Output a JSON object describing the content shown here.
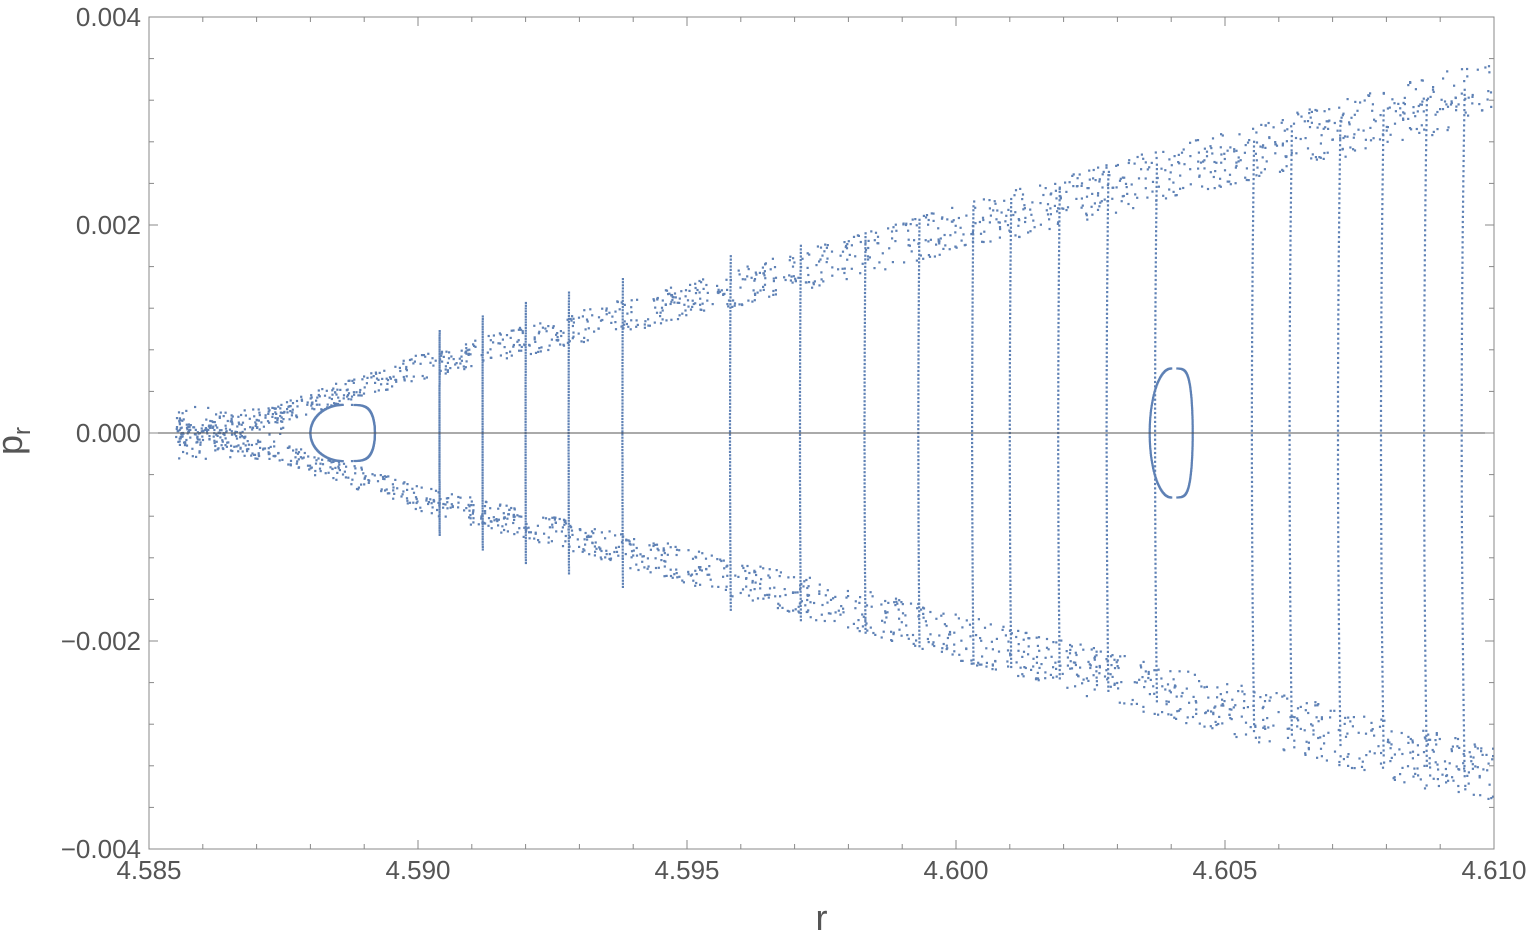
{
  "chart_data": {
    "type": "scatter",
    "title": "",
    "xlabel": "r",
    "ylabel_main": "p",
    "ylabel_sub": "r",
    "xlim": [
      4.585,
      4.61
    ],
    "ylim": [
      -0.004,
      0.004
    ],
    "x_ticks": [
      4.585,
      4.59,
      4.595,
      4.6,
      4.605,
      4.61
    ],
    "x_tick_labels": [
      "4.585",
      "4.590",
      "4.595",
      "4.600",
      "4.605",
      "4.610"
    ],
    "y_ticks": [
      -0.004,
      -0.002,
      0,
      0.002,
      0.004
    ],
    "y_tick_labels": [
      "−0.004",
      "−0.002",
      "0.000",
      "0.002",
      "0.004"
    ],
    "grid": false,
    "zero_line": true,
    "marker_color": "#5e81b5",
    "series": [
      {
        "kind": "torus-curves",
        "description_points": "closed invariant curves (KAM tori) around the fixed point; vertex r0 at p_r=0, opening width 'a' (quadratic-in-p fit), max |p_r| limited by envelope",
        "curves": [
          {
            "r0": 4.5904,
            "a": 0.0028,
            "pmax": 0.00098
          },
          {
            "r0": 4.5912,
            "a": 0.0035,
            "pmax": 0.00112
          },
          {
            "r0": 4.592,
            "a": 0.0042,
            "pmax": 0.00125
          },
          {
            "r0": 4.5928,
            "a": 0.005,
            "pmax": 0.00135
          },
          {
            "r0": 4.5938,
            "a": 0.0062,
            "pmax": 0.00148
          },
          {
            "r0": 4.5958,
            "a": 0.0085,
            "pmax": 0.0017
          },
          {
            "r0": 4.5971,
            "a": 0.0095,
            "pmax": 0.0018
          },
          {
            "r0": 4.5983,
            "a": 0.0104,
            "pmax": 0.00192
          },
          {
            "r0": 4.5993,
            "a": 0.0112,
            "pmax": 0.00205
          },
          {
            "r0": 4.6003,
            "a": 0.012,
            "pmax": 0.00218
          },
          {
            "r0": 4.601,
            "a": 0.0125,
            "pmax": 0.00225
          },
          {
            "r0": 4.6019,
            "a": 0.0131,
            "pmax": 0.00236
          },
          {
            "r0": 4.6028,
            "a": 0.0137,
            "pmax": 0.00248
          },
          {
            "r0": 4.6037,
            "a": 0.0142,
            "pmax": 0.00258
          },
          {
            "r0": 4.6055,
            "a": 0.0152,
            "pmax": 0.0028
          },
          {
            "r0": 4.6062,
            "a": 0.0156,
            "pmax": 0.0029
          },
          {
            "r0": 4.6071,
            "a": 0.0162,
            "pmax": 0.003
          },
          {
            "r0": 4.6079,
            "a": 0.0167,
            "pmax": 0.0031
          },
          {
            "r0": 4.6087,
            "a": 0.0172,
            "pmax": 0.0032
          },
          {
            "r0": 4.6094,
            "a": 0.0177,
            "pmax": 0.0033
          }
        ]
      },
      {
        "kind": "islands",
        "islands": [
          {
            "r_left": 4.588,
            "r_right": 4.5892,
            "p_half": 0.00027
          },
          {
            "r_left": 4.6036,
            "r_right": 4.6044,
            "p_half": 0.00062
          }
        ]
      },
      {
        "kind": "chaotic-band",
        "envelope_upper": [
          [
            4.5855,
            4e-05
          ],
          [
            4.5875,
            0.0003
          ],
          [
            4.59,
            0.00075
          ],
          [
            4.595,
            0.00145
          ],
          [
            4.6,
            0.00218
          ],
          [
            4.605,
            0.0029
          ],
          [
            4.61,
            0.0036
          ]
        ],
        "band_width": [
          [
            4.5875,
            0.0002
          ],
          [
            4.6,
            0.00045
          ],
          [
            4.61,
            0.0006
          ]
        ]
      }
    ]
  }
}
